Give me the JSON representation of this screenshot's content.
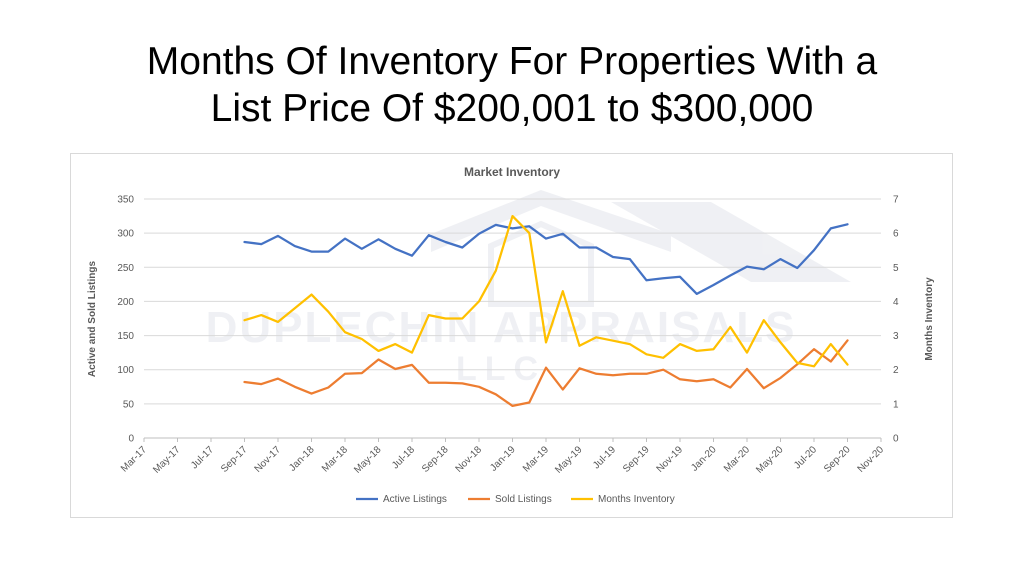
{
  "slide": {
    "title_line1": "Months Of Inventory For Properties With a",
    "title_line2": "List Price Of $200,001 to $300,000"
  },
  "watermark": {
    "line1": "DUPLECHIN APPRAISALS",
    "line2": "LLC"
  },
  "colors": {
    "active": "#4472c4",
    "sold": "#ed7d31",
    "months": "#ffc000",
    "axis_text": "#595959",
    "grid": "#d9d9d9"
  },
  "chart_data": {
    "type": "line",
    "title": "Market Inventory",
    "ylabel": "Active and Sold Listings",
    "y2label": "Months Inventory",
    "ylim": [
      0,
      350
    ],
    "y2lim": [
      0,
      7
    ],
    "yticks": [
      0,
      50,
      100,
      150,
      200,
      250,
      300,
      350
    ],
    "y2ticks": [
      0,
      1,
      2,
      3,
      4,
      5,
      6,
      7
    ],
    "xticks": [
      "Mar-17",
      "May-17",
      "Jul-17",
      "Sep-17",
      "Nov-17",
      "Jan-18",
      "Mar-18",
      "May-18",
      "Jul-18",
      "Sep-18",
      "Nov-18",
      "Jan-19",
      "Mar-19",
      "May-19",
      "Jul-19",
      "Sep-19",
      "Nov-19",
      "Jan-20",
      "Mar-20",
      "May-20",
      "Jul-20",
      "Sep-20",
      "Nov-20"
    ],
    "x": [
      "Sep-17",
      "Oct-17",
      "Nov-17",
      "Dec-17",
      "Jan-18",
      "Feb-18",
      "Mar-18",
      "Apr-18",
      "May-18",
      "Jun-18",
      "Jul-18",
      "Aug-18",
      "Sep-18",
      "Oct-18",
      "Nov-18",
      "Dec-18",
      "Jan-19",
      "Feb-19",
      "Mar-19",
      "Apr-19",
      "May-19",
      "Jun-19",
      "Jul-19",
      "Aug-19",
      "Sep-19",
      "Oct-19",
      "Nov-19",
      "Dec-19",
      "Jan-20",
      "Feb-20",
      "Mar-20",
      "Apr-20",
      "May-20",
      "Jun-20",
      "Jul-20",
      "Aug-20",
      "Sep-20"
    ],
    "grid": true,
    "legend_position": "bottom",
    "series": [
      {
        "name": "Active Listings",
        "axis": "left",
        "values": [
          287,
          284,
          296,
          281,
          273,
          273,
          292,
          277,
          291,
          277,
          267,
          297,
          287,
          279,
          299,
          312,
          307,
          310,
          292,
          299,
          279,
          279,
          265,
          262,
          231,
          234,
          236,
          211,
          224,
          238,
          251,
          247,
          262,
          249,
          275,
          307,
          313
        ]
      },
      {
        "name": "Sold Listings",
        "axis": "left",
        "values": [
          82,
          79,
          87,
          75,
          65,
          74,
          94,
          95,
          115,
          101,
          107,
          81,
          81,
          80,
          75,
          64,
          47,
          52,
          103,
          71,
          102,
          94,
          92,
          94,
          94,
          100,
          86,
          83,
          86,
          74,
          101,
          73,
          88,
          108,
          130,
          112,
          143
        ]
      },
      {
        "name": "Months Inventory",
        "axis": "right",
        "values": [
          3.45,
          3.6,
          3.4,
          3.8,
          4.2,
          3.7,
          3.1,
          2.9,
          2.55,
          2.75,
          2.5,
          3.6,
          3.5,
          3.5,
          4.0,
          4.9,
          6.5,
          6.0,
          2.8,
          4.3,
          2.7,
          2.95,
          2.85,
          2.75,
          2.45,
          2.35,
          2.75,
          2.55,
          2.6,
          3.25,
          2.5,
          3.45,
          2.8,
          2.2,
          2.1,
          2.75,
          2.15
        ]
      }
    ]
  }
}
